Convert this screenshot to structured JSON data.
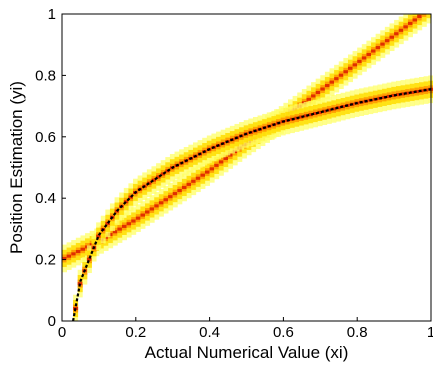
{
  "chart_data": {
    "type": "heatmap",
    "xlabel": "Actual Numerical Value (xi)",
    "ylabel": "Position Estimation (yi)",
    "xlim": [
      0,
      1
    ],
    "ylim": [
      0,
      1
    ],
    "x_ticks": [
      "0",
      "0.2",
      "0.4",
      "0.6",
      "0.8",
      "1"
    ],
    "y_ticks": [
      "0",
      "0.2",
      "0.4",
      "0.6",
      "0.8",
      "1"
    ],
    "grid": false,
    "legend": "none",
    "colors": {
      "band_light": "#ffff66",
      "band_mid": "#ffdd00",
      "band_hot": "#ff9900",
      "band_peak": "#dd2200",
      "curve": "#000000"
    },
    "series": [
      {
        "kind": "density-band",
        "x": [
          0.0,
          0.1,
          0.2,
          0.3,
          0.4,
          0.5,
          0.6,
          0.7,
          0.8,
          0.9,
          1.0
        ],
        "y": [
          0.2,
          0.26,
          0.33,
          0.41,
          0.49,
          0.58,
          0.66,
          0.75,
          0.84,
          0.93,
          1.02
        ]
      },
      {
        "kind": "density-band",
        "x": [
          0.03,
          0.05,
          0.1,
          0.15,
          0.2,
          0.3,
          0.4,
          0.5,
          0.6,
          0.7,
          0.8,
          0.9,
          1.0
        ],
        "y": [
          0.0,
          0.13,
          0.28,
          0.36,
          0.42,
          0.5,
          0.56,
          0.61,
          0.65,
          0.68,
          0.71,
          0.735,
          0.755
        ]
      },
      {
        "kind": "fit-curve",
        "x": [
          0.03,
          0.05,
          0.1,
          0.15,
          0.2,
          0.3,
          0.4,
          0.5,
          0.6,
          0.7,
          0.8,
          0.9,
          1.0
        ],
        "y": [
          0.0,
          0.13,
          0.28,
          0.36,
          0.42,
          0.5,
          0.56,
          0.61,
          0.65,
          0.68,
          0.71,
          0.735,
          0.755
        ]
      }
    ]
  }
}
